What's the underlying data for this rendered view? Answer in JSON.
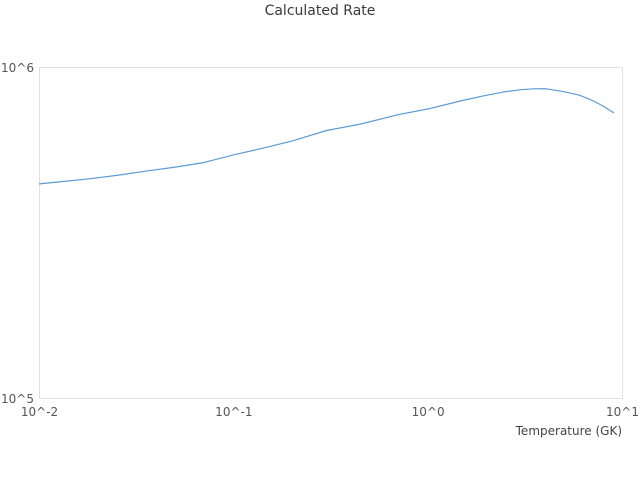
{
  "colors": {
    "line": "#5b9bd5",
    "frame": "#e1e1e1",
    "title_text": "#3a3a3a",
    "tick_text": "#555555",
    "axis_label_text": "#444444",
    "background": "#ffffff"
  },
  "chart_data": {
    "type": "line",
    "title": "Calculated Rate",
    "xlabel": "Temperature (GK)",
    "ylabel": "",
    "xscale": "log",
    "yscale": "log",
    "xlim": [
      0.01,
      10
    ],
    "ylim": [
      100000,
      1000000
    ],
    "grid": false,
    "legend": "none",
    "x_tick_labels": [
      "10^-2",
      "10^-1",
      "10^0",
      "10^1"
    ],
    "x_tick_values": [
      0.01,
      0.1,
      1,
      10
    ],
    "y_tick_labels": [
      "10^5",
      "10^6"
    ],
    "y_tick_values": [
      100000,
      1000000
    ],
    "series": [
      {
        "name": "calculated-rate",
        "x": [
          0.01,
          0.013,
          0.018,
          0.025,
          0.035,
          0.05,
          0.07,
          0.1,
          0.14,
          0.2,
          0.3,
          0.45,
          0.7,
          1.0,
          1.5,
          2.0,
          2.5,
          3.0,
          3.5,
          4.0,
          5.0,
          6.0,
          7.0,
          8.0,
          9.0
        ],
        "y": [
          445000,
          452000,
          461000,
          472000,
          486000,
          500000,
          516000,
          545000,
          570000,
          600000,
          645000,
          675000,
          720000,
          750000,
          795000,
          825000,
          845000,
          857000,
          862000,
          863000,
          845000,
          825000,
          795000,
          763000,
          730000
        ]
      }
    ]
  }
}
